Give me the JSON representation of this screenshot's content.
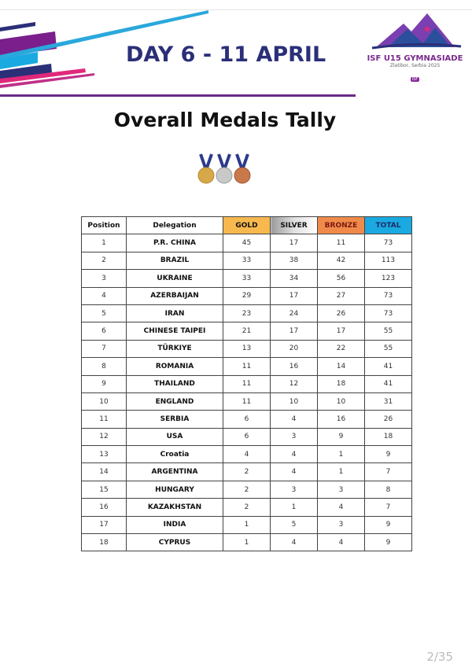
{
  "header": {
    "day_title": "DAY 6 - 11 APRIL"
  },
  "logo": {
    "name": "ISF U15 GYMNASIADE",
    "location": "Zlatibor, Serbia 2025",
    "badge": "ISF"
  },
  "title": "Overall Medals Tally",
  "medal_icons": [
    "gold-medal",
    "silver-medal",
    "bronze-medal"
  ],
  "colors": {
    "gold": "#f7b84e",
    "silver": "#c8c8c8",
    "bronze": "#f08a4b",
    "total": "#1aa9e0",
    "heading": "#2b2f78"
  },
  "table": {
    "headers": [
      "Position",
      "Delegation",
      "GOLD",
      "SILVER",
      "BRONZE",
      "TOTAL"
    ],
    "rows": [
      [
        "1",
        "P.R. CHINA",
        "45",
        "17",
        "11",
        "73"
      ],
      [
        "2",
        "BRAZIL",
        "33",
        "38",
        "42",
        "113"
      ],
      [
        "3",
        "UKRAINE",
        "33",
        "34",
        "56",
        "123"
      ],
      [
        "4",
        "AZERBAIJAN",
        "29",
        "17",
        "27",
        "73"
      ],
      [
        "5",
        "IRAN",
        "23",
        "24",
        "26",
        "73"
      ],
      [
        "6",
        "CHINESE TAIPEI",
        "21",
        "17",
        "17",
        "55"
      ],
      [
        "7",
        "TÜRKIYE",
        "13",
        "20",
        "22",
        "55"
      ],
      [
        "8",
        "ROMANIA",
        "11",
        "16",
        "14",
        "41"
      ],
      [
        "9",
        "THAILAND",
        "11",
        "12",
        "18",
        "41"
      ],
      [
        "10",
        "ENGLAND",
        "11",
        "10",
        "10",
        "31"
      ],
      [
        "11",
        "SERBIA",
        "6",
        "4",
        "16",
        "26"
      ],
      [
        "12",
        "USA",
        "6",
        "3",
        "9",
        "18"
      ],
      [
        "13",
        "Croatia",
        "4",
        "4",
        "1",
        "9"
      ],
      [
        "14",
        "ARGENTINA",
        "2",
        "4",
        "1",
        "7"
      ],
      [
        "15",
        "HUNGARY",
        "2",
        "3",
        "3",
        "8"
      ],
      [
        "16",
        "KAZAKHSTAN",
        "2",
        "1",
        "4",
        "7"
      ],
      [
        "17",
        "INDIA",
        "1",
        "5",
        "3",
        "9"
      ],
      [
        "18",
        "CYPRUS",
        "1",
        "4",
        "4",
        "9"
      ]
    ]
  },
  "page_indicator": "2/35"
}
